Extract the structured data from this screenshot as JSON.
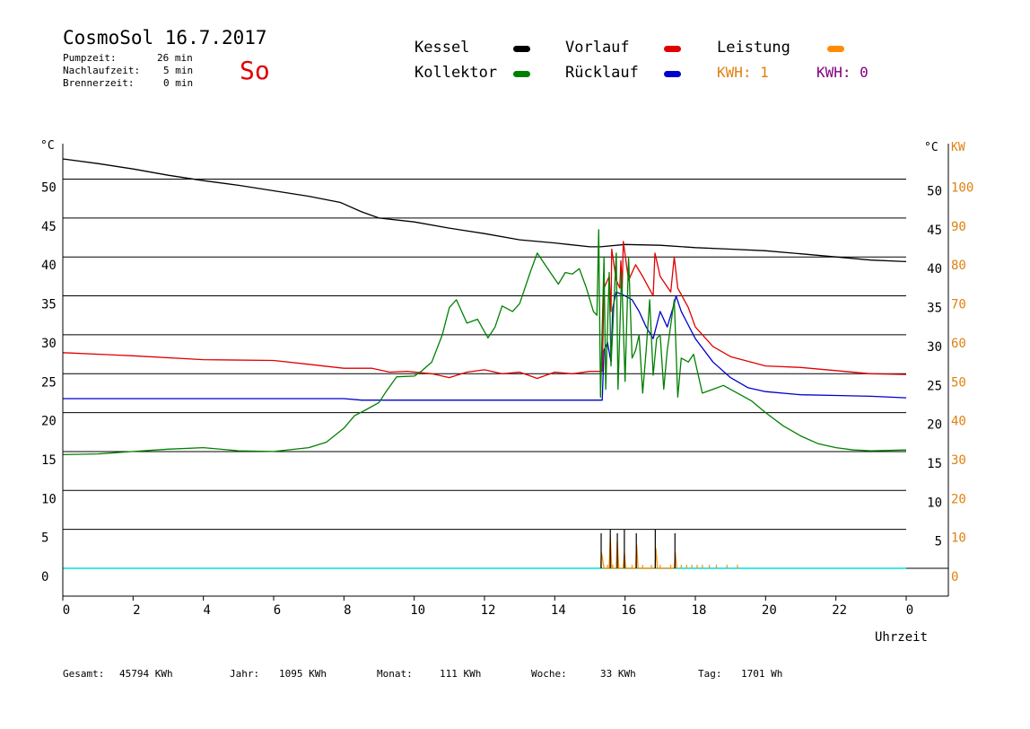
{
  "header": {
    "title": "CosmoSol 16.7.2017",
    "stats": [
      {
        "label": "Pumpzeit:",
        "value": "26 min"
      },
      {
        "label": "Nachlaufzeit:",
        "value": "5 min"
      },
      {
        "label": "Brennerzeit:",
        "value": "0 min"
      }
    ],
    "weekday": "So"
  },
  "legend": {
    "kessel": "Kessel",
    "kollektor": "Kollektor",
    "vorlauf": "Vorlauf",
    "ruecklauf": "Rücklauf",
    "leistung": "Leistung",
    "kwh_orange": "KWH: 1",
    "kwh_purple": "KWH: 0",
    "colors": {
      "kessel": "#000000",
      "kollektor": "#008000",
      "vorlauf": "#e00000",
      "ruecklauf": "#0000cc",
      "leistung": "#ff8c00",
      "purple": "#800080",
      "baseline": "#00e0e0"
    }
  },
  "chart_data": {
    "type": "line",
    "xlabel": "Uhrzeit",
    "x_ticks": [
      "0",
      "2",
      "4",
      "6",
      "8",
      "10",
      "12",
      "14",
      "16",
      "18",
      "20",
      "22",
      "0"
    ],
    "xlim": [
      0,
      24
    ],
    "ylim_left": [
      -3.5,
      55
    ],
    "ylim_right": [
      -7,
      110
    ],
    "unit_left_top": "°C",
    "unit_right_top_c": "°C",
    "unit_right_top_kw": "KW",
    "left_ticks": [
      0,
      5,
      10,
      15,
      20,
      25,
      30,
      35,
      40,
      45,
      50
    ],
    "right_c_ticks": [
      5,
      10,
      15,
      20,
      25,
      30,
      35,
      40,
      45,
      50
    ],
    "right_kw_ticks": [
      0,
      10,
      20,
      30,
      40,
      50,
      60,
      70,
      80,
      90,
      100
    ],
    "grid_lines": [
      0,
      5,
      10,
      15,
      20,
      25,
      30,
      35,
      40,
      45,
      50
    ],
    "series": [
      {
        "name": "Kessel",
        "color": "#000000",
        "points": [
          [
            0,
            52.6
          ],
          [
            1,
            52
          ],
          [
            2,
            51.3
          ],
          [
            3,
            50.5
          ],
          [
            4,
            49.8
          ],
          [
            5,
            49.2
          ],
          [
            6,
            48.5
          ],
          [
            7,
            47.8
          ],
          [
            7.9,
            47
          ],
          [
            8.5,
            45.8
          ],
          [
            9,
            45
          ],
          [
            10,
            44.5
          ],
          [
            11,
            43.7
          ],
          [
            12,
            43
          ],
          [
            13,
            42.2
          ],
          [
            14,
            41.8
          ],
          [
            15,
            41.3
          ],
          [
            15.3,
            41.3
          ],
          [
            16,
            41.6
          ],
          [
            17,
            41.5
          ],
          [
            18,
            41.2
          ],
          [
            19,
            41
          ],
          [
            20,
            40.8
          ],
          [
            21,
            40.4
          ],
          [
            22,
            40
          ],
          [
            23,
            39.6
          ],
          [
            24,
            39.4
          ]
        ]
      },
      {
        "name": "Vorlauf",
        "color": "#e00000",
        "points": [
          [
            0,
            27.7
          ],
          [
            2,
            27.3
          ],
          [
            4,
            26.8
          ],
          [
            6,
            26.7
          ],
          [
            7,
            26.2
          ],
          [
            8,
            25.7
          ],
          [
            8.8,
            25.7
          ],
          [
            9.3,
            25.2
          ],
          [
            9.8,
            25.3
          ],
          [
            10.5,
            25
          ],
          [
            11,
            24.5
          ],
          [
            11.5,
            25.2
          ],
          [
            12,
            25.5
          ],
          [
            12.5,
            25
          ],
          [
            13,
            25.2
          ],
          [
            13.5,
            24.4
          ],
          [
            14,
            25.2
          ],
          [
            14.5,
            25
          ],
          [
            15,
            25.3
          ],
          [
            15.35,
            25.3
          ],
          [
            15.4,
            36
          ],
          [
            15.55,
            37.5
          ],
          [
            15.6,
            33
          ],
          [
            15.62,
            41
          ],
          [
            15.75,
            37
          ],
          [
            15.85,
            36
          ],
          [
            15.88,
            39.5
          ],
          [
            15.92,
            36
          ],
          [
            15.95,
            42
          ],
          [
            16.1,
            37
          ],
          [
            16.3,
            39
          ],
          [
            16.5,
            37.5
          ],
          [
            16.8,
            35
          ],
          [
            16.85,
            40.5
          ],
          [
            17,
            37.5
          ],
          [
            17.3,
            35.5
          ],
          [
            17.4,
            40
          ],
          [
            17.5,
            36
          ],
          [
            17.8,
            33.5
          ],
          [
            18,
            31
          ],
          [
            18.5,
            28.5
          ],
          [
            19,
            27.2
          ],
          [
            20,
            26
          ],
          [
            21,
            25.8
          ],
          [
            22,
            25.4
          ],
          [
            23,
            25
          ],
          [
            24,
            24.9
          ]
        ]
      },
      {
        "name": "Rücklauf",
        "color": "#0000cc",
        "points": [
          [
            0,
            21.8
          ],
          [
            2,
            21.8
          ],
          [
            4,
            21.8
          ],
          [
            6,
            21.8
          ],
          [
            8,
            21.8
          ],
          [
            8.5,
            21.6
          ],
          [
            10,
            21.6
          ],
          [
            12,
            21.6
          ],
          [
            15.3,
            21.6
          ],
          [
            15.35,
            21.6
          ],
          [
            15.4,
            28
          ],
          [
            15.5,
            29
          ],
          [
            15.6,
            26.5
          ],
          [
            15.65,
            33.5
          ],
          [
            15.75,
            35.5
          ],
          [
            16,
            35
          ],
          [
            16.2,
            34.5
          ],
          [
            16.4,
            33
          ],
          [
            16.6,
            31
          ],
          [
            16.8,
            29.5
          ],
          [
            17,
            33
          ],
          [
            17.2,
            31
          ],
          [
            17.4,
            34
          ],
          [
            17.45,
            35
          ],
          [
            17.6,
            33
          ],
          [
            18,
            29.5
          ],
          [
            18.5,
            26.5
          ],
          [
            19,
            24.5
          ],
          [
            19.5,
            23.2
          ],
          [
            20,
            22.7
          ],
          [
            21,
            22.3
          ],
          [
            22,
            22.2
          ],
          [
            23,
            22.1
          ],
          [
            24,
            21.9
          ]
        ]
      },
      {
        "name": "Kollektor",
        "color": "#008000",
        "points": [
          [
            0,
            14.6
          ],
          [
            1,
            14.7
          ],
          [
            2,
            15
          ],
          [
            3,
            15.3
          ],
          [
            4,
            15.5
          ],
          [
            5,
            15.1
          ],
          [
            6,
            15
          ],
          [
            7,
            15.5
          ],
          [
            7.5,
            16.2
          ],
          [
            8,
            18
          ],
          [
            8.3,
            19.6
          ],
          [
            8.6,
            20.3
          ],
          [
            9,
            21.3
          ],
          [
            9.2,
            22.7
          ],
          [
            9.5,
            24.6
          ],
          [
            10,
            24.7
          ],
          [
            10.2,
            25.3
          ],
          [
            10.5,
            26.5
          ],
          [
            10.8,
            30
          ],
          [
            11,
            33.5
          ],
          [
            11.2,
            34.5
          ],
          [
            11.5,
            31.5
          ],
          [
            11.8,
            32
          ],
          [
            12.1,
            29.6
          ],
          [
            12.3,
            31
          ],
          [
            12.5,
            33.7
          ],
          [
            12.8,
            33
          ],
          [
            13,
            34
          ],
          [
            13.3,
            38
          ],
          [
            13.5,
            40.5
          ],
          [
            13.8,
            38.5
          ],
          [
            14.1,
            36.5
          ],
          [
            14.3,
            38
          ],
          [
            14.5,
            37.8
          ],
          [
            14.7,
            38.5
          ],
          [
            14.9,
            36
          ],
          [
            15.1,
            33
          ],
          [
            15.2,
            32.5
          ],
          [
            15.25,
            43.5
          ],
          [
            15.3,
            22
          ],
          [
            15.4,
            40
          ],
          [
            15.45,
            23
          ],
          [
            15.55,
            38
          ],
          [
            15.6,
            26
          ],
          [
            15.75,
            40.5
          ],
          [
            15.8,
            23
          ],
          [
            15.9,
            38
          ],
          [
            16,
            24
          ],
          [
            16.1,
            40
          ],
          [
            16.2,
            27
          ],
          [
            16.3,
            28
          ],
          [
            16.4,
            30
          ],
          [
            16.5,
            22.5
          ],
          [
            16.6,
            28
          ],
          [
            16.7,
            34.5
          ],
          [
            16.8,
            24.8
          ],
          [
            16.9,
            29.5
          ],
          [
            17,
            30
          ],
          [
            17.1,
            23
          ],
          [
            17.2,
            28
          ],
          [
            17.4,
            34.5
          ],
          [
            17.5,
            22
          ],
          [
            17.6,
            27
          ],
          [
            17.8,
            26.5
          ],
          [
            17.95,
            27.5
          ],
          [
            18.2,
            22.5
          ],
          [
            18.5,
            23
          ],
          [
            18.8,
            23.5
          ],
          [
            19.2,
            22.5
          ],
          [
            19.6,
            21.5
          ],
          [
            20,
            20
          ],
          [
            20.5,
            18.3
          ],
          [
            21,
            17
          ],
          [
            21.5,
            16
          ],
          [
            22,
            15.5
          ],
          [
            22.5,
            15.2
          ],
          [
            23,
            15.1
          ],
          [
            24,
            15.2
          ]
        ]
      },
      {
        "name": "Leistung",
        "color": "#ff8c00",
        "points": [
          [
            15.3,
            0
          ],
          [
            15.33,
            2
          ],
          [
            15.4,
            0
          ],
          [
            15.55,
            0
          ],
          [
            15.58,
            4
          ],
          [
            15.62,
            0
          ],
          [
            15.75,
            0
          ],
          [
            15.78,
            3.5
          ],
          [
            15.82,
            0
          ],
          [
            15.95,
            0
          ],
          [
            15.98,
            2
          ],
          [
            16.02,
            0
          ],
          [
            16.3,
            0
          ],
          [
            16.33,
            3
          ],
          [
            16.37,
            0
          ],
          [
            16.85,
            0
          ],
          [
            16.88,
            2.5
          ],
          [
            16.92,
            0
          ],
          [
            17.4,
            0
          ],
          [
            17.43,
            2
          ],
          [
            17.47,
            0
          ]
        ]
      }
    ],
    "spikes": [
      15.32,
      15.58,
      15.78,
      15.98,
      16.32,
      16.86,
      17.42
    ],
    "kw_ticks": [
      15.5,
      15.65,
      16.2,
      16.5,
      16.75,
      17.0,
      17.3,
      17.6,
      17.75,
      17.9,
      18.05,
      18.2,
      18.4,
      18.6,
      18.9,
      19.2
    ],
    "baseline_value": 0
  },
  "footer": [
    {
      "label": "Gesamt:",
      "value": "45794 KWh"
    },
    {
      "label": "Jahr:",
      "value": "1095 KWh"
    },
    {
      "label": "Monat:",
      "value": "111 KWh"
    },
    {
      "label": "Woche:",
      "value": "33 KWh"
    },
    {
      "label": "Tag:",
      "value": "1701 Wh"
    }
  ]
}
